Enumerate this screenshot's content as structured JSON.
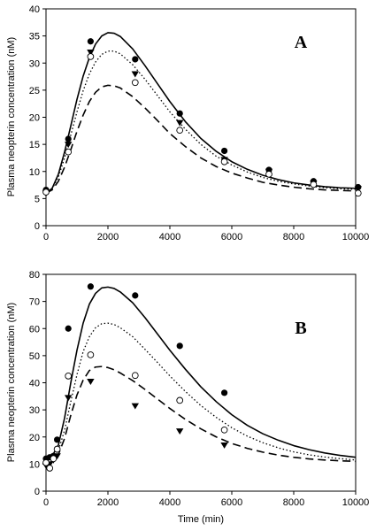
{
  "chart_data": [
    {
      "type": "scatter",
      "panel_label": "A",
      "ylabel": "Plasma neopterin concentration (nM)",
      "xlabel": "",
      "xlim": [
        0,
        10000
      ],
      "ylim": [
        0,
        40
      ],
      "xticks": [
        "0",
        "2000",
        "4000",
        "6000",
        "8000",
        "10000"
      ],
      "yticks": [
        "0",
        "5",
        "10",
        "15",
        "20",
        "25",
        "30",
        "35",
        "40"
      ],
      "grid": false,
      "series": [
        {
          "marker": "filled-circle",
          "x": [
            0,
            720,
            1440,
            2880,
            4320,
            5760,
            7200,
            8640,
            10080
          ],
          "y": [
            6.6,
            16.0,
            34.0,
            30.7,
            20.7,
            13.8,
            10.3,
            8.2,
            7.1
          ]
        },
        {
          "marker": "open-circle",
          "x": [
            0,
            720,
            1440,
            2880,
            4320,
            5760,
            7200,
            8640,
            10080
          ],
          "y": [
            6.2,
            13.6,
            31.2,
            26.4,
            17.6,
            11.8,
            9.5,
            7.6,
            6.0
          ]
        },
        {
          "marker": "filled-triangle-down",
          "x": [
            0,
            720,
            1440,
            2880,
            4320,
            5760,
            7200,
            8640,
            10080
          ],
          "y": [
            6.0,
            15.0,
            32.0,
            28.0,
            19.0,
            12.2,
            10.0,
            7.8,
            6.8
          ]
        }
      ],
      "curves": [
        {
          "style": "solid",
          "x": [
            0,
            200,
            400,
            600,
            800,
            1000,
            1200,
            1400,
            1600,
            1800,
            2000,
            2200,
            2400,
            2800,
            3200,
            3600,
            4000,
            4500,
            5000,
            5500,
            6000,
            6500,
            7000,
            7500,
            8000,
            8500,
            9000,
            9500,
            10000
          ],
          "y": [
            6.0,
            6.9,
            9.5,
            13.6,
            18.4,
            23.3,
            27.6,
            31.0,
            33.5,
            35.0,
            35.6,
            35.5,
            34.9,
            32.6,
            29.5,
            26.2,
            22.9,
            19.2,
            16.1,
            13.7,
            11.8,
            10.4,
            9.3,
            8.5,
            7.9,
            7.5,
            7.2,
            7.0,
            6.9
          ]
        },
        {
          "style": "dotted",
          "x": [
            0,
            200,
            400,
            600,
            800,
            1000,
            1200,
            1400,
            1600,
            1800,
            2000,
            2200,
            2400,
            2800,
            3200,
            3600,
            4000,
            4500,
            5000,
            5500,
            6000,
            6500,
            7000,
            7500,
            8000,
            8500,
            9000,
            9500,
            10000
          ],
          "y": [
            6.0,
            6.8,
            9.0,
            12.5,
            16.7,
            21.0,
            24.9,
            28.0,
            30.2,
            31.6,
            32.2,
            32.2,
            31.7,
            29.7,
            27.0,
            24.0,
            21.0,
            17.8,
            15.0,
            12.8,
            11.2,
            9.9,
            8.9,
            8.2,
            7.7,
            7.3,
            7.0,
            6.8,
            6.7
          ]
        },
        {
          "style": "dashed",
          "x": [
            0,
            200,
            400,
            600,
            800,
            1000,
            1200,
            1400,
            1600,
            1800,
            2000,
            2200,
            2400,
            2800,
            3200,
            3600,
            4000,
            4500,
            5000,
            5500,
            6000,
            6500,
            7000,
            7500,
            8000,
            8500,
            9000,
            9500,
            10000
          ],
          "y": [
            6.0,
            6.6,
            8.2,
            10.8,
            14.0,
            17.4,
            20.4,
            22.9,
            24.6,
            25.6,
            25.9,
            25.8,
            25.4,
            23.8,
            21.7,
            19.4,
            17.0,
            14.6,
            12.5,
            10.9,
            9.7,
            8.8,
            8.0,
            7.5,
            7.1,
            6.8,
            6.6,
            6.5,
            6.4
          ]
        }
      ]
    },
    {
      "type": "scatter",
      "panel_label": "B",
      "ylabel": "Plasma neopterin concentration (nM)",
      "xlabel": "Time (min)",
      "xlim": [
        0,
        10000
      ],
      "ylim": [
        0,
        80
      ],
      "xticks": [
        "0",
        "2000",
        "4000",
        "6000",
        "8000",
        "10000"
      ],
      "yticks": [
        "0",
        "10",
        "20",
        "30",
        "40",
        "50",
        "60",
        "70",
        "80"
      ],
      "grid": false,
      "series": [
        {
          "marker": "filled-circle",
          "x": [
            0,
            120,
            240,
            360,
            720,
            1440,
            2880,
            4320,
            5760
          ],
          "y": [
            12.0,
            12.5,
            13.0,
            19.0,
            60.0,
            75.5,
            72.2,
            53.6,
            36.3
          ]
        },
        {
          "marker": "open-circle",
          "x": [
            0,
            120,
            240,
            360,
            720,
            1440,
            2880,
            4320,
            5760
          ],
          "y": [
            10.5,
            8.5,
            12.0,
            15.5,
            42.5,
            50.3,
            42.7,
            33.5,
            22.6
          ]
        },
        {
          "marker": "filled-triangle-down",
          "x": [
            0,
            120,
            240,
            360,
            720,
            1440,
            2880,
            4320,
            5760
          ],
          "y": [
            9.5,
            10.0,
            11.5,
            13.0,
            34.5,
            40.5,
            31.5,
            22.2,
            17.0
          ]
        }
      ],
      "curves": [
        {
          "style": "solid",
          "x": [
            0,
            200,
            400,
            600,
            800,
            1000,
            1200,
            1400,
            1600,
            1800,
            2000,
            2200,
            2400,
            2800,
            3200,
            3600,
            4000,
            4500,
            5000,
            5500,
            6000,
            6500,
            7000,
            7500,
            8000,
            8500,
            9000,
            9500,
            10000
          ],
          "y": [
            12.0,
            13.0,
            17.0,
            27.0,
            40.0,
            52.0,
            62.0,
            69.0,
            73.0,
            75.0,
            75.3,
            74.8,
            73.5,
            69.5,
            64.0,
            58.0,
            52.0,
            45.0,
            38.5,
            33.0,
            28.2,
            24.3,
            21.2,
            18.8,
            16.8,
            15.3,
            14.1,
            13.2,
            12.5
          ]
        },
        {
          "style": "dotted",
          "x": [
            0,
            200,
            400,
            600,
            800,
            1000,
            1200,
            1400,
            1600,
            1800,
            2000,
            2200,
            2400,
            2800,
            3200,
            3600,
            4000,
            4500,
            5000,
            5500,
            6000,
            6500,
            7000,
            7500,
            8000,
            8500,
            9000,
            9500,
            10000
          ],
          "y": [
            11.0,
            12.0,
            15.0,
            22.5,
            33.0,
            43.0,
            51.5,
            57.0,
            60.3,
            61.8,
            62.0,
            61.5,
            60.3,
            57.0,
            52.3,
            47.5,
            42.5,
            36.8,
            31.6,
            27.2,
            23.4,
            20.3,
            17.9,
            16.0,
            14.5,
            13.4,
            12.6,
            12.0,
            11.5
          ]
        },
        {
          "style": "dashed",
          "x": [
            0,
            200,
            400,
            600,
            800,
            1000,
            1200,
            1400,
            1600,
            1800,
            2000,
            2200,
            2400,
            2800,
            3200,
            3600,
            4000,
            4500,
            5000,
            5500,
            6000,
            6500,
            7000,
            7500,
            8000,
            8500,
            9000,
            9500,
            10000
          ],
          "y": [
            10.0,
            11.0,
            13.5,
            19.5,
            28.0,
            35.5,
            41.0,
            44.5,
            45.8,
            46.0,
            45.6,
            44.8,
            43.6,
            40.8,
            37.5,
            34.0,
            30.5,
            26.5,
            23.0,
            20.0,
            17.6,
            15.8,
            14.4,
            13.3,
            12.5,
            11.9,
            11.5,
            11.2,
            11.0
          ]
        }
      ]
    }
  ]
}
